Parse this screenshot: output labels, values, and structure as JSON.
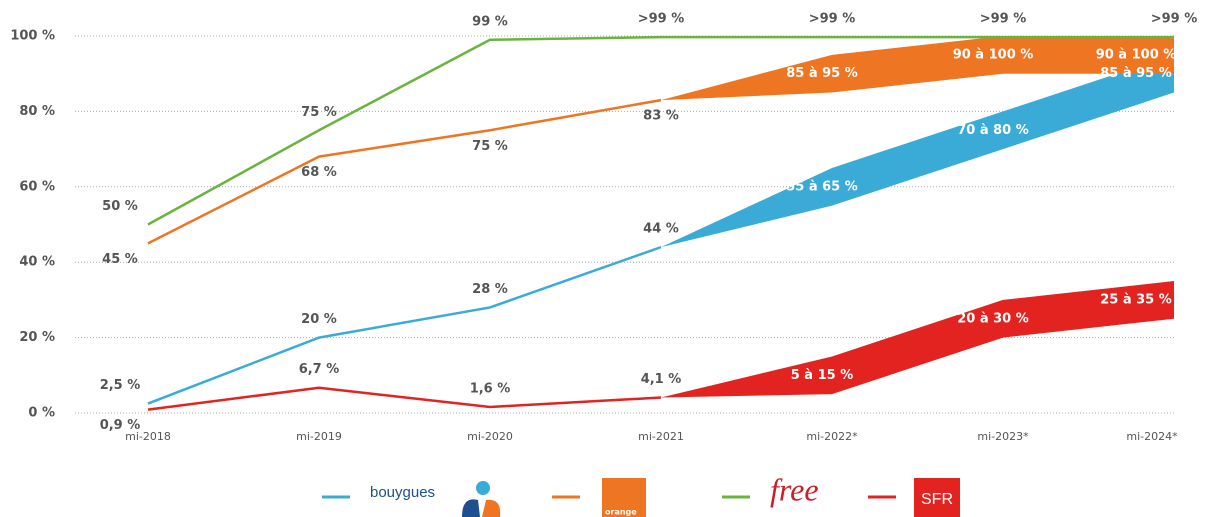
{
  "chart_data": {
    "type": "line",
    "categories": [
      "mi-2018",
      "mi-2019",
      "mi-2020",
      "mi-2021",
      "mi-2022*",
      "mi-2023*",
      "mi-2024*"
    ],
    "ylim": [
      0,
      100
    ],
    "yticks": [
      {
        "value": 0,
        "label": "0 %"
      },
      {
        "value": 20,
        "label": "20 %"
      },
      {
        "value": 40,
        "label": "40 %"
      },
      {
        "value": 60,
        "label": "60 %"
      },
      {
        "value": 80,
        "label": "80 %"
      },
      {
        "value": 100,
        "label": "100 %"
      }
    ],
    "grid": true,
    "series": [
      {
        "name": "bouygues",
        "color": "#3aabd6",
        "values": [
          2.5,
          20,
          28,
          44,
          55,
          70,
          85
        ],
        "upper": [
          null,
          null,
          null,
          null,
          65,
          80,
          95
        ],
        "value_labels": [
          "2,5 %",
          "20 %",
          "28 %",
          "44 %",
          "55 à 65 %",
          "70 à 80 %",
          "85 à 95 %"
        ]
      },
      {
        "name": "orange",
        "color": "#ee7623",
        "values": [
          45,
          68,
          75,
          83,
          85,
          90,
          90
        ],
        "upper": [
          null,
          null,
          null,
          null,
          95,
          100,
          100
        ],
        "value_labels": [
          "45 %",
          "68 %",
          "75 %",
          "83 %",
          "85 à 95 %",
          "90 à 100 %",
          "90 à 100 %"
        ]
      },
      {
        "name": "free",
        "color": "#6ab43e",
        "values": [
          50,
          75,
          99,
          99.7,
          99.7,
          99.7,
          99.7
        ],
        "upper": [
          null,
          null,
          null,
          null,
          null,
          null,
          null
        ],
        "value_labels": [
          "50 %",
          "75 %",
          "99 %",
          ">99 %",
          ">99 %",
          ">99 %",
          ">99 %"
        ]
      },
      {
        "name": "SFR",
        "color": "#e3231f",
        "values": [
          0.9,
          6.7,
          1.6,
          4.1,
          5,
          20,
          25
        ],
        "upper": [
          null,
          null,
          null,
          null,
          15,
          30,
          35
        ],
        "value_labels": [
          "0,9 %",
          "6,7 %",
          "1,6 %",
          "4,1 %",
          "5 à 15 %",
          "20 à 30 %",
          "25 à 35 %"
        ]
      }
    ]
  }
}
